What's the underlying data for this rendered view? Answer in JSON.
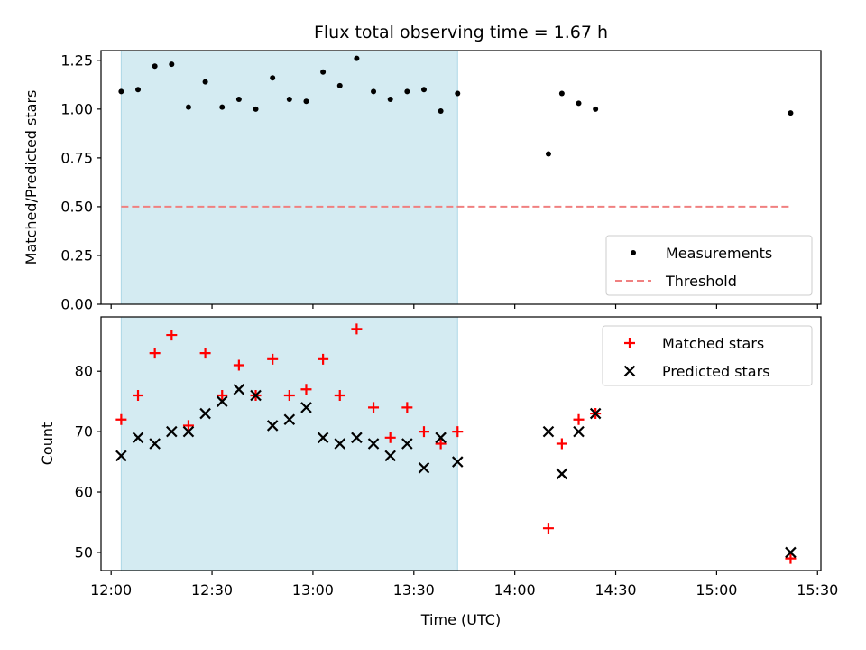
{
  "chart_data": {
    "title": "Flux total observing time = 1.67 h",
    "xlabel": "Time (UTC)",
    "x_ticks": [
      "12:00",
      "12:30",
      "13:00",
      "13:30",
      "14:00",
      "14:30",
      "15:00",
      "15:30"
    ],
    "x_range": [
      "11:57",
      "15:31"
    ],
    "shaded_interval": [
      "12:03",
      "13:43"
    ],
    "shade_color": "#add8e6",
    "panels": [
      {
        "type": "scatter",
        "ylabel": "Matched/Predicted stars",
        "ylim": [
          0,
          1.3
        ],
        "y_ticks": [
          0.0,
          0.25,
          0.5,
          0.75,
          1.0,
          1.25
        ],
        "y_tick_labels": [
          "0.00",
          "0.25",
          "0.50",
          "0.75",
          "1.00",
          "1.25"
        ],
        "legend_position": "lower-right",
        "series": [
          {
            "name": "Measurements",
            "marker": "dot",
            "color": "#000000",
            "x": [
              "12:03",
              "12:08",
              "12:13",
              "12:18",
              "12:23",
              "12:28",
              "12:33",
              "12:38",
              "12:43",
              "12:48",
              "12:53",
              "12:58",
              "13:03",
              "13:08",
              "13:13",
              "13:18",
              "13:23",
              "13:28",
              "13:33",
              "13:38",
              "13:43",
              "14:10",
              "14:14",
              "14:19",
              "14:24",
              "15:22"
            ],
            "y": [
              1.09,
              1.1,
              1.22,
              1.23,
              1.01,
              1.14,
              1.01,
              1.05,
              1.0,
              1.16,
              1.05,
              1.04,
              1.19,
              1.12,
              1.26,
              1.09,
              1.05,
              1.09,
              1.1,
              0.99,
              1.08,
              0.77,
              1.08,
              1.03,
              1.0,
              0.98
            ]
          },
          {
            "name": "Threshold",
            "marker": "dashed-line",
            "color": "#f08080",
            "x": [
              "12:03",
              "15:22"
            ],
            "y": [
              0.5,
              0.5
            ]
          }
        ]
      },
      {
        "type": "scatter",
        "ylabel": "Count",
        "ylim": [
          47,
          89
        ],
        "y_ticks": [
          50,
          60,
          70,
          80
        ],
        "y_tick_labels": [
          "50",
          "60",
          "70",
          "80"
        ],
        "legend_position": "top-right",
        "series": [
          {
            "name": "Matched stars",
            "marker": "plus",
            "color": "#ff0000",
            "x": [
              "12:03",
              "12:08",
              "12:13",
              "12:18",
              "12:23",
              "12:28",
              "12:33",
              "12:38",
              "12:43",
              "12:48",
              "12:53",
              "12:58",
              "13:03",
              "13:08",
              "13:13",
              "13:18",
              "13:23",
              "13:28",
              "13:33",
              "13:38",
              "13:43",
              "14:10",
              "14:14",
              "14:19",
              "14:24",
              "15:22"
            ],
            "y": [
              72,
              76,
              83,
              86,
              71,
              83,
              76,
              81,
              76,
              82,
              76,
              77,
              82,
              76,
              87,
              74,
              69,
              74,
              70,
              68,
              70,
              54,
              68,
              72,
              73,
              49
            ]
          },
          {
            "name": "Predicted stars",
            "marker": "x",
            "color": "#000000",
            "x": [
              "12:03",
              "12:08",
              "12:13",
              "12:18",
              "12:23",
              "12:28",
              "12:33",
              "12:38",
              "12:43",
              "12:48",
              "12:53",
              "12:58",
              "13:03",
              "13:08",
              "13:13",
              "13:18",
              "13:23",
              "13:28",
              "13:33",
              "13:38",
              "13:43",
              "14:10",
              "14:14",
              "14:19",
              "14:24",
              "15:22"
            ],
            "y": [
              66,
              69,
              68,
              70,
              70,
              73,
              75,
              77,
              76,
              71,
              72,
              74,
              69,
              68,
              69,
              68,
              66,
              68,
              64,
              69,
              65,
              70,
              63,
              70,
              73,
              50
            ]
          }
        ]
      }
    ]
  }
}
